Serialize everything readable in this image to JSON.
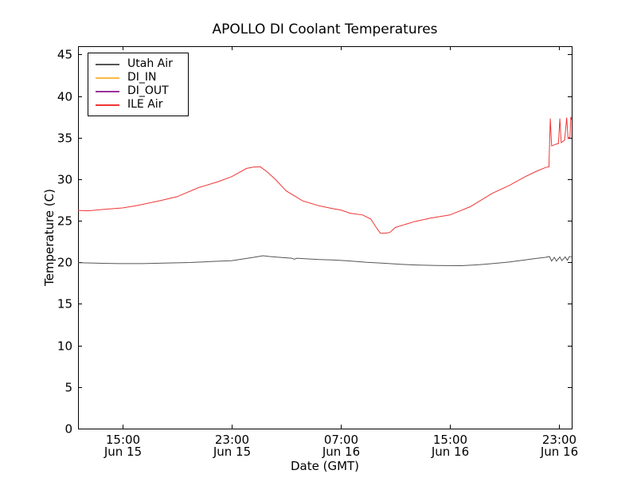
{
  "chart_data": {
    "type": "line",
    "title": "APOLLO DI Coolant Temperatures",
    "xlabel": "Date (GMT)",
    "ylabel": "Temperature (C)",
    "x_unit": "hours since Jun 15 00:00 GMT",
    "xlim": [
      11.75,
      47.92
    ],
    "ylim": [
      0,
      46
    ],
    "grid": false,
    "legend_position": "upper left",
    "background_color": "#ffffff",
    "axis_color": "#000000",
    "y_ticks": [
      {
        "value": 0,
        "label": "0"
      },
      {
        "value": 5,
        "label": "5"
      },
      {
        "value": 10,
        "label": "10"
      },
      {
        "value": 15,
        "label": "15"
      },
      {
        "value": 20,
        "label": "20"
      },
      {
        "value": 25,
        "label": "25"
      },
      {
        "value": 30,
        "label": "30"
      },
      {
        "value": 35,
        "label": "35"
      },
      {
        "value": 40,
        "label": "40"
      },
      {
        "value": 45,
        "label": "45"
      }
    ],
    "x_ticks": [
      {
        "value": 15,
        "time": "15:00",
        "date": "Jun 15"
      },
      {
        "value": 23,
        "time": "23:00",
        "date": "Jun 15"
      },
      {
        "value": 31,
        "time": "07:00",
        "date": "Jun 16"
      },
      {
        "value": 39,
        "time": "15:00",
        "date": "Jun 16"
      },
      {
        "value": 47,
        "time": "23:00",
        "date": "Jun 16"
      }
    ],
    "series": [
      {
        "name": "Utah Air",
        "color": "#555555",
        "points": [
          [
            11.75,
            19.95
          ],
          [
            13,
            19.9
          ],
          [
            14.8,
            19.85
          ],
          [
            16.5,
            19.85
          ],
          [
            18,
            19.9
          ],
          [
            20,
            19.98
          ],
          [
            21.5,
            20.1
          ],
          [
            23,
            20.2
          ],
          [
            24,
            20.45
          ],
          [
            24.8,
            20.65
          ],
          [
            25.3,
            20.8
          ],
          [
            25.8,
            20.7
          ],
          [
            26.5,
            20.6
          ],
          [
            27.4,
            20.5
          ],
          [
            27.6,
            20.38
          ],
          [
            27.8,
            20.5
          ],
          [
            28.5,
            20.42
          ],
          [
            29.4,
            20.35
          ],
          [
            30.5,
            20.28
          ],
          [
            31.5,
            20.18
          ],
          [
            32.9,
            20.0
          ],
          [
            34,
            19.9
          ],
          [
            35.5,
            19.75
          ],
          [
            36.5,
            19.68
          ],
          [
            38,
            19.62
          ],
          [
            39.8,
            19.6
          ],
          [
            40.8,
            19.68
          ],
          [
            41.6,
            19.78
          ],
          [
            42.5,
            19.9
          ],
          [
            43.4,
            20.05
          ],
          [
            44.3,
            20.25
          ],
          [
            45.2,
            20.45
          ],
          [
            46,
            20.6
          ],
          [
            46.3,
            20.7
          ],
          [
            46.45,
            20.15
          ],
          [
            46.65,
            20.6
          ],
          [
            46.8,
            20.15
          ],
          [
            47.05,
            20.65
          ],
          [
            47.2,
            20.2
          ],
          [
            47.45,
            20.65
          ],
          [
            47.6,
            20.25
          ],
          [
            47.75,
            20.7
          ],
          [
            47.9,
            20.65
          ]
        ]
      },
      {
        "name": "DI_IN",
        "color": "#fdb946",
        "points": []
      },
      {
        "name": "DI_OUT",
        "color": "#993399",
        "points": []
      },
      {
        "name": "ILE Air",
        "color": "#f03535",
        "points": [
          [
            11.75,
            26.25
          ],
          [
            12.5,
            26.2
          ],
          [
            13.5,
            26.35
          ],
          [
            15,
            26.55
          ],
          [
            16,
            26.8
          ],
          [
            17.7,
            27.4
          ],
          [
            19,
            27.9
          ],
          [
            20.6,
            29.0
          ],
          [
            22,
            29.7
          ],
          [
            23,
            30.3
          ],
          [
            24.1,
            31.3
          ],
          [
            24.6,
            31.45
          ],
          [
            25.1,
            31.5
          ],
          [
            25.6,
            30.9
          ],
          [
            26.2,
            30.0
          ],
          [
            27,
            28.6
          ],
          [
            28.2,
            27.4
          ],
          [
            29.4,
            26.8
          ],
          [
            30.3,
            26.5
          ],
          [
            31,
            26.3
          ],
          [
            31.7,
            25.9
          ],
          [
            32.6,
            25.7
          ],
          [
            33.2,
            25.2
          ],
          [
            33.6,
            24.2
          ],
          [
            33.9,
            23.5
          ],
          [
            34.3,
            23.5
          ],
          [
            34.6,
            23.6
          ],
          [
            35,
            24.2
          ],
          [
            35.6,
            24.5
          ],
          [
            36.4,
            24.9
          ],
          [
            37.5,
            25.3
          ],
          [
            39,
            25.7
          ],
          [
            40.5,
            26.7
          ],
          [
            42.1,
            28.3
          ],
          [
            43.4,
            29.3
          ],
          [
            44.5,
            30.3
          ],
          [
            45.4,
            31.0
          ],
          [
            46,
            31.4
          ],
          [
            46.25,
            31.5
          ],
          [
            46.35,
            37.3
          ],
          [
            46.45,
            34.0
          ],
          [
            46.75,
            34.2
          ],
          [
            46.95,
            34.3
          ],
          [
            47.05,
            37.3
          ],
          [
            47.15,
            34.4
          ],
          [
            47.4,
            34.7
          ],
          [
            47.55,
            37.4
          ],
          [
            47.65,
            34.9
          ],
          [
            47.8,
            35.1
          ],
          [
            47.85,
            37.5
          ],
          [
            47.9,
            37.2
          ]
        ]
      }
    ]
  }
}
